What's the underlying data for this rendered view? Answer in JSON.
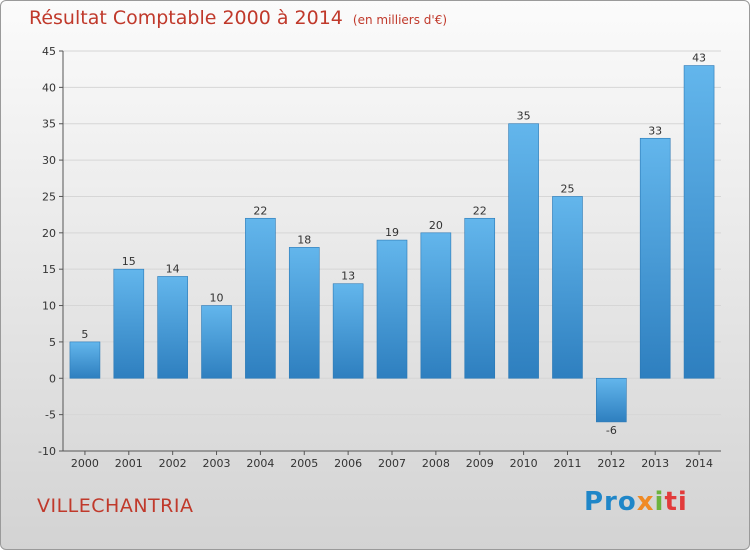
{
  "title": "Résultat Comptable 2000 à 2014",
  "subtitle": "(en milliers d'€)",
  "footer": {
    "commune": "VILLECHANTRIA"
  },
  "logo": {
    "parts": [
      "Pro",
      "x",
      "i",
      "ti"
    ]
  },
  "colors": {
    "title": "#c0392b",
    "bar_top": "#63b6ec",
    "bar_bottom": "#2e7fbf",
    "grid": "#d6d6d6",
    "axis": "#555555"
  },
  "chart_data": {
    "type": "bar",
    "title": "Résultat Comptable 2000 à 2014",
    "subtitle": "(en milliers d'€)",
    "xlabel": "",
    "ylabel": "",
    "categories": [
      "2000",
      "2001",
      "2002",
      "2003",
      "2004",
      "2005",
      "2006",
      "2007",
      "2008",
      "2009",
      "2010",
      "2011",
      "2012",
      "2013",
      "2014"
    ],
    "values": [
      5,
      15,
      14,
      10,
      22,
      18,
      13,
      19,
      20,
      22,
      35,
      25,
      -6,
      33,
      43
    ],
    "ylim": [
      -10,
      45
    ],
    "yticks": [
      -10,
      -5,
      0,
      5,
      10,
      15,
      20,
      25,
      30,
      35,
      40,
      45
    ],
    "grid": true,
    "legend": "none"
  }
}
